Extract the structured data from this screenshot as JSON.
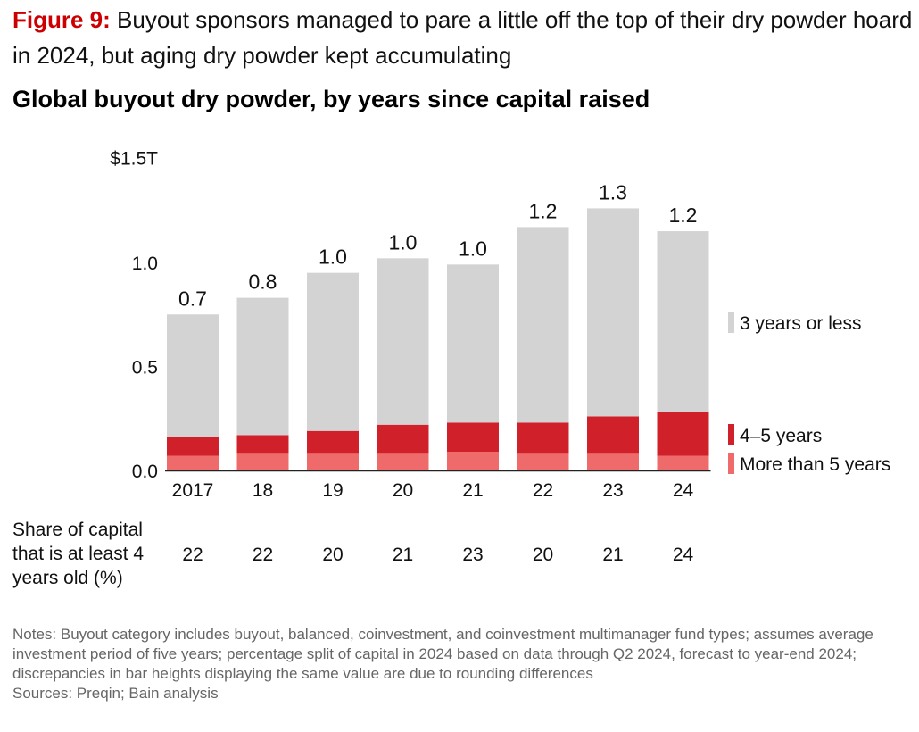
{
  "figure": {
    "label": "Figure 9:",
    "caption": "Buyout sponsors managed to pare a little off the top of their dry powder hoard in 2024, but aging dry powder kept accumulating"
  },
  "colors": {
    "three_years_or_less": "#d3d3d3",
    "four_to_five_years": "#d0202a",
    "more_than_five_years": "#ef6b6b",
    "accent": "#cc0000"
  },
  "chart_data": {
    "type": "bar",
    "stacked": true,
    "title": "Global buyout dry powder, by years since capital raised",
    "categories": [
      "2017",
      "18",
      "19",
      "20",
      "21",
      "22",
      "23",
      "24"
    ],
    "ylabel": "",
    "ylim": [
      0,
      1.5
    ],
    "yticks": [
      0.0,
      0.5,
      1.0,
      1.5
    ],
    "ytick_labels": [
      "0.0",
      "0.5",
      "1.0",
      "$1.5T"
    ],
    "series": [
      {
        "name": "More than 5 years",
        "values": [
          0.07,
          0.08,
          0.08,
          0.08,
          0.09,
          0.08,
          0.08,
          0.07
        ]
      },
      {
        "name": "4–5 years",
        "values": [
          0.09,
          0.09,
          0.11,
          0.14,
          0.14,
          0.15,
          0.18,
          0.21
        ]
      },
      {
        "name": "3 years or less",
        "values": [
          0.59,
          0.66,
          0.76,
          0.8,
          0.76,
          0.94,
          1.0,
          0.87
        ]
      }
    ],
    "totals": [
      0.75,
      0.83,
      0.95,
      1.02,
      0.99,
      1.17,
      1.26,
      1.15
    ],
    "total_labels": [
      "0.7",
      "0.8",
      "1.0",
      "1.0",
      "1.0",
      "1.2",
      "1.3",
      "1.2"
    ],
    "legend": [
      "3 years or less",
      "4–5 years",
      "More than 5 years"
    ],
    "legend_position": "right",
    "grid": false
  },
  "share_row": {
    "label": "Share of capital that is at least 4 years old (%)",
    "values": [
      "22",
      "22",
      "20",
      "21",
      "23",
      "20",
      "21",
      "24"
    ]
  },
  "notes": {
    "notes_text": "Notes: Buyout category includes buyout, balanced, coinvestment, and coinvestment multimanager fund types; assumes average investment period of five years; percentage split of capital in 2024 based on data through Q2 2024, forecast to year-end 2024; discrepancies in bar heights displaying the same value are due to rounding differences",
    "sources_text": "Sources: Preqin; Bain analysis"
  }
}
